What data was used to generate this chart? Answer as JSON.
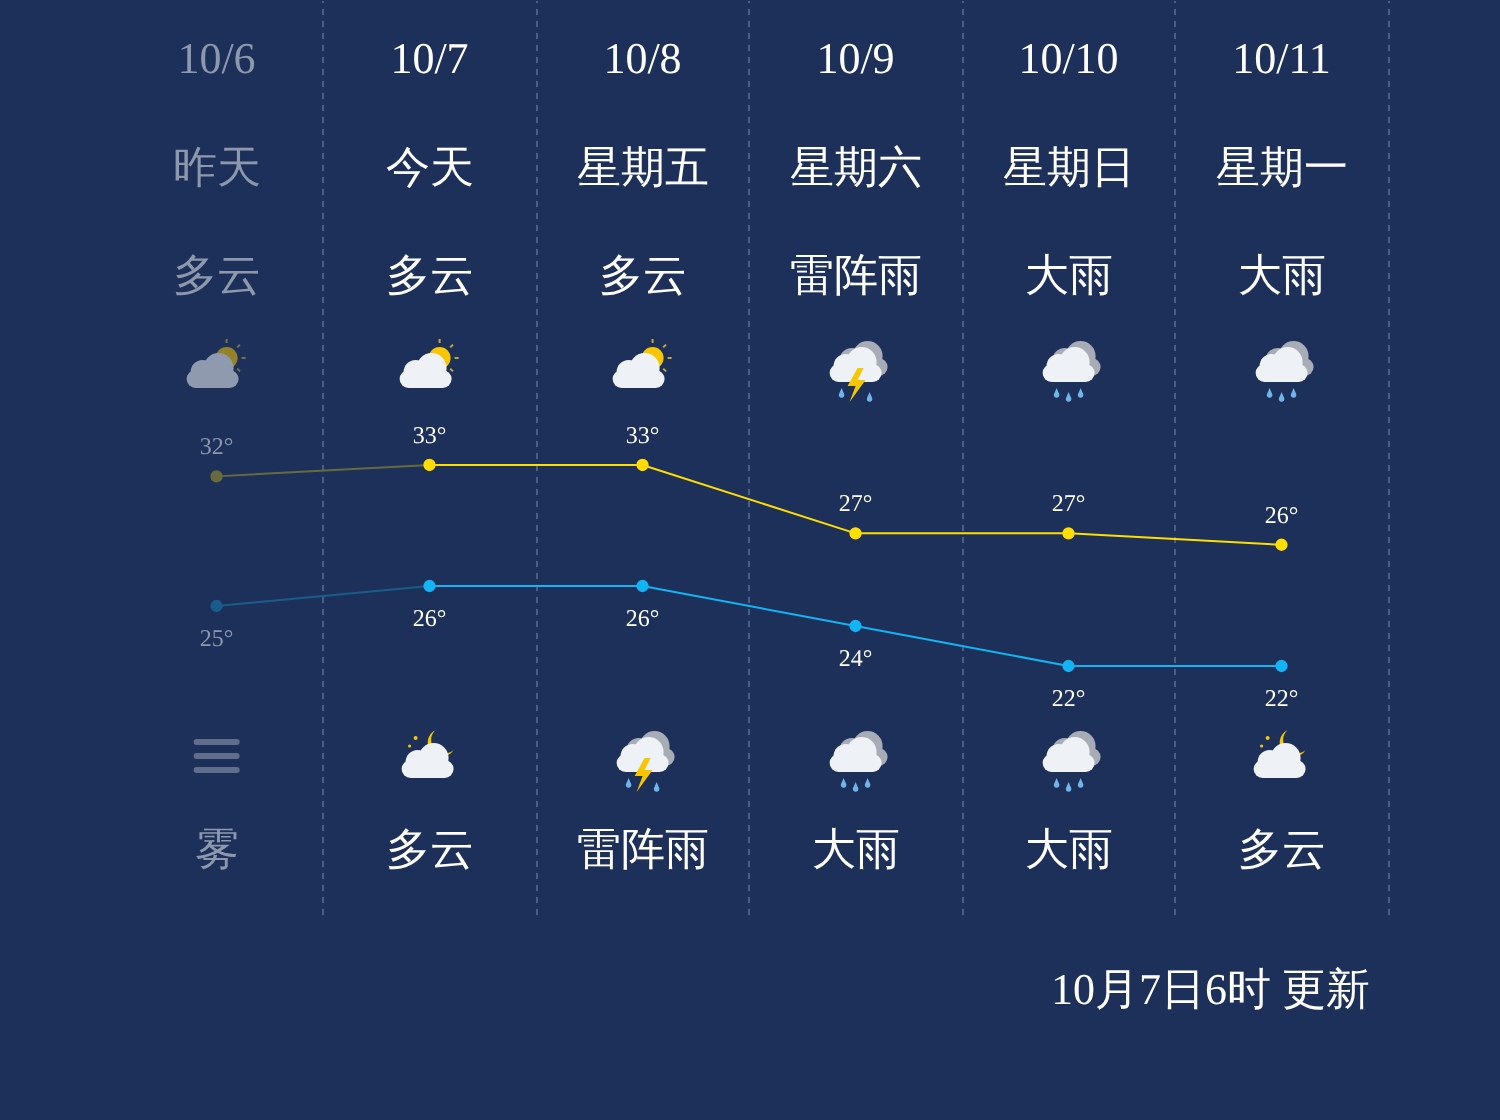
{
  "chart_data": {
    "type": "line",
    "categories": [
      "10/6",
      "10/7",
      "10/8",
      "10/9",
      "10/10",
      "10/11"
    ],
    "series": [
      {
        "color": "#ffdd00",
        "values": [
          32,
          33,
          33,
          27,
          27,
          26
        ],
        "value_labels": [
          "32°",
          "33°",
          "33°",
          "27°",
          "27°",
          "26°"
        ]
      },
      {
        "color": "#12b4f4",
        "axis": "y2",
        "values": [
          25,
          26,
          26,
          24,
          22,
          22
        ],
        "value_labels": [
          "25°",
          "26°",
          "26°",
          "24°",
          "22°",
          "22°"
        ]
      }
    ],
    "ylim": [
      -6.4,
      73.8
    ],
    "y2lim": [
      9.6,
      55.3
    ],
    "tick_labels": "x",
    "grid": "x",
    "marker": "circle",
    "annotations": [
      "昨天",
      "今天",
      "星期五",
      "星期六",
      "星期日",
      "星期一",
      "多云",
      "多云",
      "多云",
      "雷阵雨",
      "大雨",
      "大雨",
      "雾",
      "多云",
      "雷阵雨",
      "大雨",
      "大雨",
      "多云",
      "10月7日6时 更新"
    ]
  }
}
